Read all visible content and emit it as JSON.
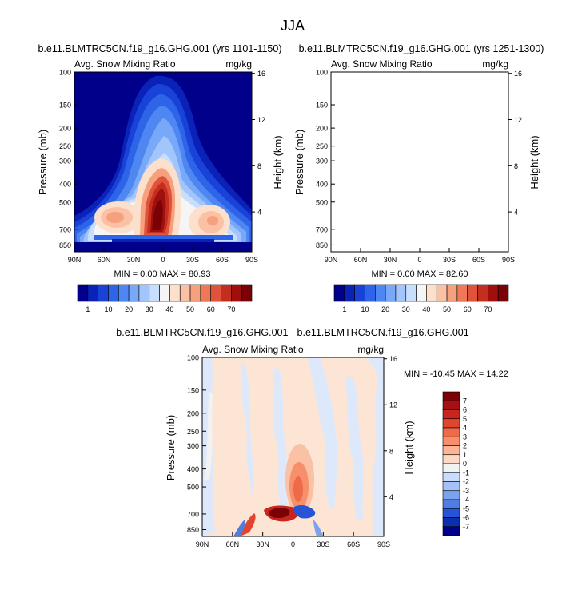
{
  "page_title": "JJA",
  "charts": [
    {
      "id": "p1",
      "title": "b.e11.BLMTRC5CN.f19_g16.GHG.001 (yrs 1101-1150)",
      "left_label": "Avg. Snow Mixing Ratio",
      "right_label": "mg/kg",
      "ylabel": "Pressure (mb)",
      "y2label": "Height (km)",
      "stats": "MIN =   0.00  MAX =  80.93"
    },
    {
      "id": "p2",
      "title": "b.e11.BLMTRC5CN.f19_g16.GHG.001 (yrs 1251-1300)",
      "left_label": "Avg. Snow Mixing Ratio",
      "right_label": "mg/kg",
      "ylabel": "Pressure (mb)",
      "y2label": "Height (km)",
      "stats": "MIN =   0.00  MAX =  82.60"
    },
    {
      "id": "p3",
      "title": "b.e11.BLMTRC5CN.f19_g16.GHG.001 - b.e11.BLMTRC5CN.f19_g16.GHG.001",
      "left_label": "Avg. Snow Mixing Ratio",
      "right_label": "mg/kg",
      "ylabel": "Pressure (mb)",
      "y2label": "Height (km)",
      "stats": "MIN = -10.45  MAX =  14.22"
    }
  ],
  "chart_data": [
    {
      "type": "heatmap",
      "title": "b.e11.BLMTRC5CN.f19_g16.GHG.001 (yrs 1101-1150)",
      "xlabel": "",
      "ylabel": "Pressure (mb)",
      "y2label": "Height (km)",
      "xticks": [
        "90N",
        "60N",
        "30N",
        "0",
        "30S",
        "60S",
        "90S"
      ],
      "yticks": [
        100,
        150,
        200,
        250,
        300,
        400,
        500,
        700,
        850
      ],
      "y2ticks": [
        4,
        8,
        12,
        16
      ],
      "ylim": [
        100,
        925
      ],
      "colorbar_levels": [
        1,
        10,
        20,
        30,
        40,
        50,
        60,
        70
      ],
      "colorbar_ticks": [
        "1",
        "10",
        "20",
        "30",
        "40",
        "50",
        "60",
        "70"
      ],
      "colors": [
        "#00008b",
        "#0a22b8",
        "#1842d8",
        "#2e64e8",
        "#4e86f2",
        "#78a8f8",
        "#a2c6fb",
        "#c8defd",
        "#f5f5f5",
        "#fde0cc",
        "#fbc1a4",
        "#f7a07e",
        "#ef7858",
        "#e0533a",
        "#c42e1e",
        "#9e0f0d",
        "#7a0206"
      ],
      "min": 0.0,
      "max": 80.93
    },
    {
      "type": "heatmap",
      "title": "b.e11.BLMTRC5CN.f19_g16.GHG.001 (yrs 1251-1300)",
      "xlabel": "",
      "ylabel": "Pressure (mb)",
      "y2label": "Height (km)",
      "xticks": [
        "90N",
        "60N",
        "30N",
        "0",
        "30S",
        "60S",
        "90S"
      ],
      "yticks": [
        100,
        150,
        200,
        250,
        300,
        400,
        500,
        700,
        850
      ],
      "y2ticks": [
        4,
        8,
        12,
        16
      ],
      "ylim": [
        100,
        925
      ],
      "colorbar_levels": [
        1,
        10,
        20,
        30,
        40,
        50,
        60,
        70
      ],
      "colorbar_ticks": [
        "1",
        "10",
        "20",
        "30",
        "40",
        "50",
        "60",
        "70"
      ],
      "colors": [
        "#00008b",
        "#0a22b8",
        "#1842d8",
        "#2e64e8",
        "#4e86f2",
        "#78a8f8",
        "#a2c6fb",
        "#c8defd",
        "#f5f5f5",
        "#fde0cc",
        "#fbc1a4",
        "#f7a07e",
        "#ef7858",
        "#e0533a",
        "#c42e1e",
        "#9e0f0d",
        "#7a0206"
      ],
      "min": 0.0,
      "max": 82.6
    },
    {
      "type": "heatmap",
      "title": "b.e11.BLMTRC5CN.f19_g16.GHG.001 - b.e11.BLMTRC5CN.f19_g16.GHG.001",
      "xlabel": "",
      "ylabel": "Pressure (mb)",
      "y2label": "Height (km)",
      "xticks": [
        "90N",
        "60N",
        "30N",
        "0",
        "30S",
        "60S",
        "90S"
      ],
      "yticks": [
        100,
        150,
        200,
        250,
        300,
        400,
        500,
        700,
        850
      ],
      "y2ticks": [
        4,
        8,
        12,
        16
      ],
      "ylim": [
        100,
        925
      ],
      "colorbar_levels": [
        -7,
        -6,
        -5,
        -4,
        -3,
        -2,
        -1,
        0,
        1,
        2,
        3,
        4,
        5,
        6,
        7
      ],
      "colorbar_ticks": [
        "7",
        "6",
        "5",
        "4",
        "3",
        "2",
        "1",
        "0",
        "-1",
        "-2",
        "-3",
        "-4",
        "-5",
        "-6",
        "-7"
      ],
      "colors": [
        "#7a0206",
        "#a50f15",
        "#c8261c",
        "#e0452e",
        "#ef6a48",
        "#f7906a",
        "#fbb596",
        "#fdd8c2",
        "#f2f2f2",
        "#c9dcfb",
        "#a3c2f6",
        "#7aa3ef",
        "#4f7de4",
        "#2555d6",
        "#0a2fb0",
        "#00008b"
      ],
      "min": -10.45,
      "max": 14.22
    }
  ]
}
